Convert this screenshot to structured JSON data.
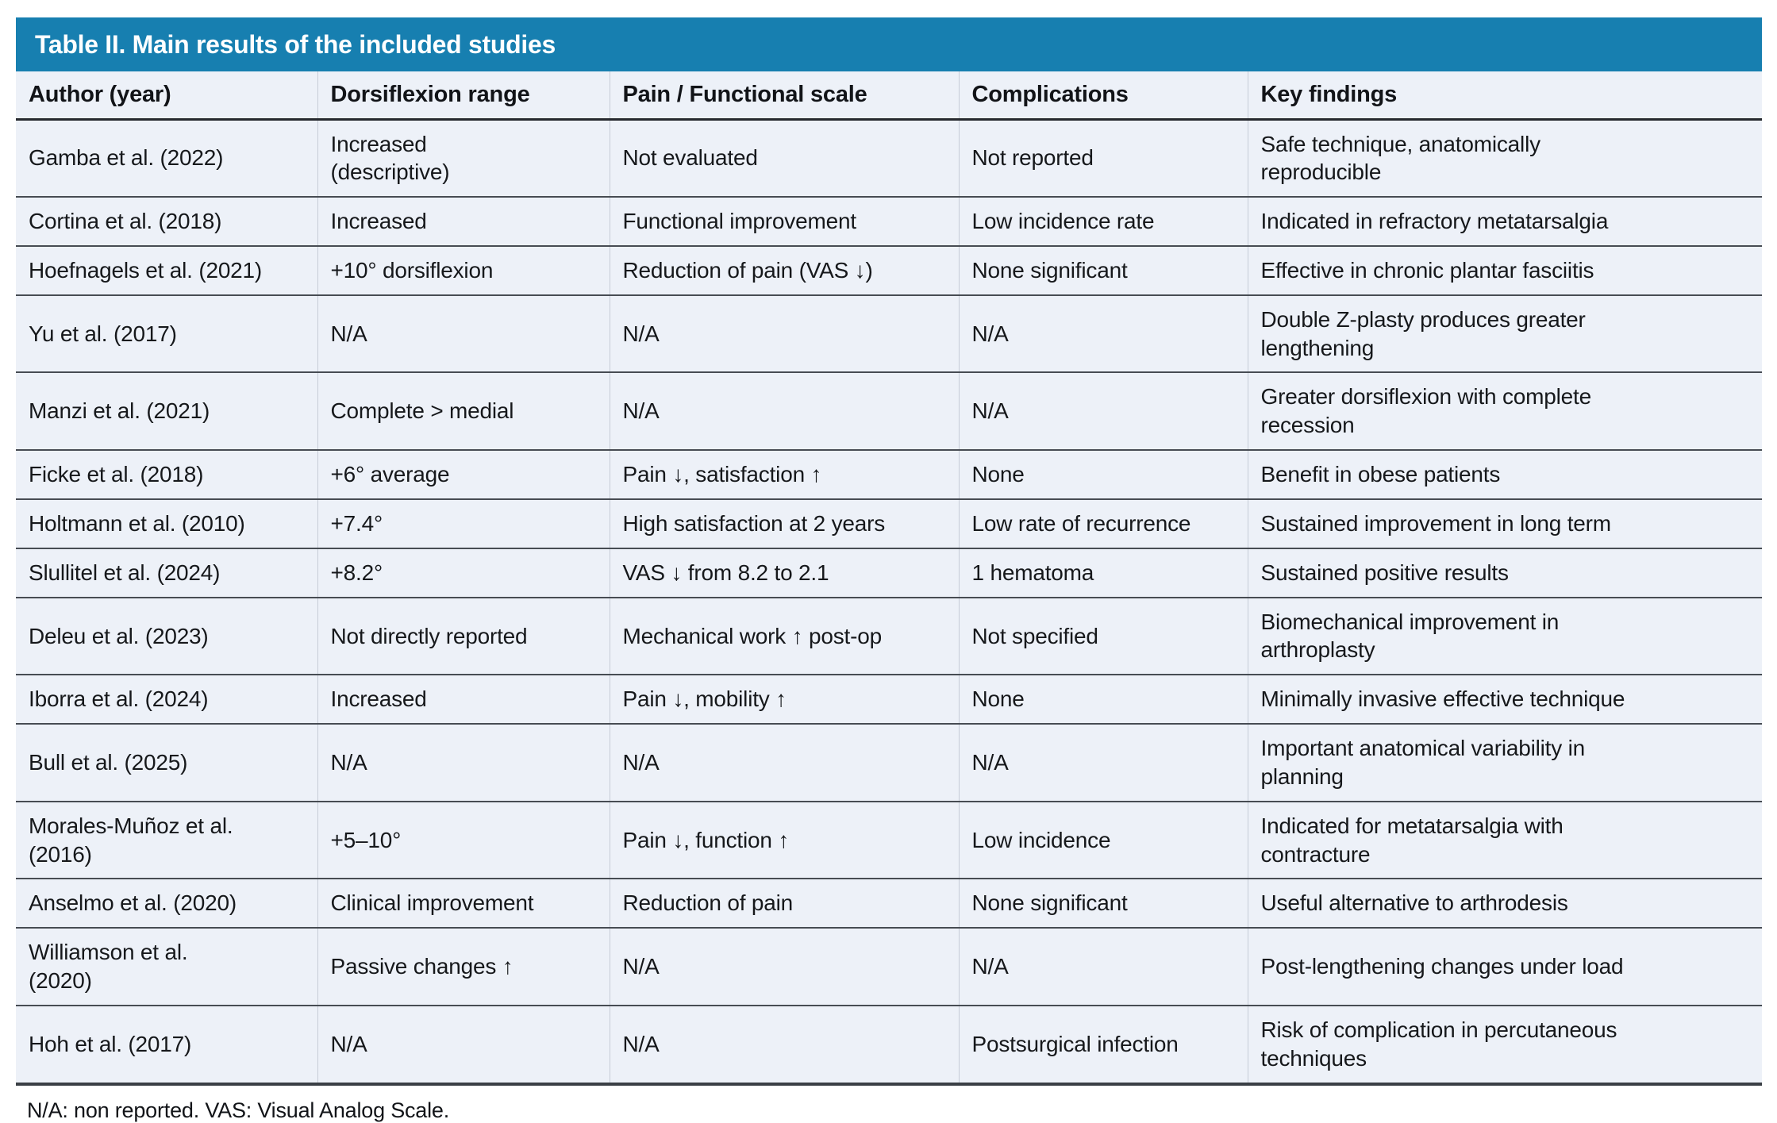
{
  "title": "Table II. Main results of the included studies",
  "columns": {
    "author": "Author (year)",
    "dorsiflexion": "Dorsiflexion range",
    "pain": "Pain / Functional scale",
    "complications": "Complications",
    "key_findings": "Key findings"
  },
  "rows": [
    {
      "author": "Gamba et al. (2022)",
      "dorsiflexion": "Increased\n(descriptive)",
      "pain": "Not evaluated",
      "complications": "Not reported",
      "key_findings": "Safe technique, anatomically\nreproducible"
    },
    {
      "author": "Cortina et al. (2018)",
      "dorsiflexion": "Increased",
      "pain": "Functional improvement",
      "complications": "Low incidence rate",
      "key_findings": "Indicated in refractory metatarsalgia"
    },
    {
      "author": "Hoefnagels et al. (2021)",
      "dorsiflexion": "+10° dorsiflexion",
      "pain": "Reduction of pain (VAS ↓)",
      "complications": "None significant",
      "key_findings": "Effective in chronic plantar fasciitis"
    },
    {
      "author": "Yu et al. (2017)",
      "dorsiflexion": "N/A",
      "pain": "N/A",
      "complications": "N/A",
      "key_findings": "Double Z-plasty produces greater\nlengthening"
    },
    {
      "author": "Manzi et al. (2021)",
      "dorsiflexion": "Complete > medial",
      "pain": "N/A",
      "complications": "N/A",
      "key_findings": "Greater dorsiflexion with complete\nrecession"
    },
    {
      "author": "Ficke et al. (2018)",
      "dorsiflexion": "+6° average",
      "pain": "Pain ↓, satisfaction ↑",
      "complications": "None",
      "key_findings": "Benefit in obese patients"
    },
    {
      "author": "Holtmann et al. (2010)",
      "dorsiflexion": "+7.4°",
      "pain": "High satisfaction at 2 years",
      "complications": "Low rate of recurrence",
      "key_findings": "Sustained improvement in long term"
    },
    {
      "author": "Slullitel et al. (2024)",
      "dorsiflexion": "+8.2°",
      "pain": "VAS ↓ from 8.2 to 2.1",
      "complications": "1 hematoma",
      "key_findings": "Sustained positive results"
    },
    {
      "author": "Deleu et al. (2023)",
      "dorsiflexion": "Not directly reported",
      "pain": "Mechanical work ↑ post-op",
      "complications": "Not specified",
      "key_findings": "Biomechanical improvement in\narthroplasty"
    },
    {
      "author": "Iborra et al. (2024)",
      "dorsiflexion": "Increased",
      "pain": "Pain ↓, mobility ↑",
      "complications": "None",
      "key_findings": "Minimally invasive effective technique"
    },
    {
      "author": "Bull et al. (2025)",
      "dorsiflexion": "N/A",
      "pain": "N/A",
      "complications": "N/A",
      "key_findings": "Important anatomical variability in\nplanning"
    },
    {
      "author": "Morales-Muñoz et al.\n(2016)",
      "dorsiflexion": "+5–10°",
      "pain": "Pain ↓, function ↑",
      "complications": "Low incidence",
      "key_findings": "Indicated for metatarsalgia with\ncontracture"
    },
    {
      "author": "Anselmo et al. (2020)",
      "dorsiflexion": "Clinical improvement",
      "pain": "Reduction of pain",
      "complications": "None significant",
      "key_findings": "Useful alternative to arthrodesis"
    },
    {
      "author": "Williamson et al.\n(2020)",
      "dorsiflexion": "Passive changes ↑",
      "pain": "N/A",
      "complications": "N/A",
      "key_findings": "Post-lengthening changes under load"
    },
    {
      "author": "Hoh et al. (2017)",
      "dorsiflexion": "N/A",
      "pain": "N/A",
      "complications": "Postsurgical infection",
      "key_findings": "Risk of complication in percutaneous\ntechniques"
    }
  ],
  "footnote": "N/A: non reported. VAS: Visual Analog Scale.",
  "colors": {
    "title_bar": "#177FB0",
    "row_background": "#EDF1F8",
    "row_border": "#474C53",
    "column_divider": "#C6CCD7",
    "title_text": "#FFFFFF",
    "body_text": "#16181B"
  }
}
